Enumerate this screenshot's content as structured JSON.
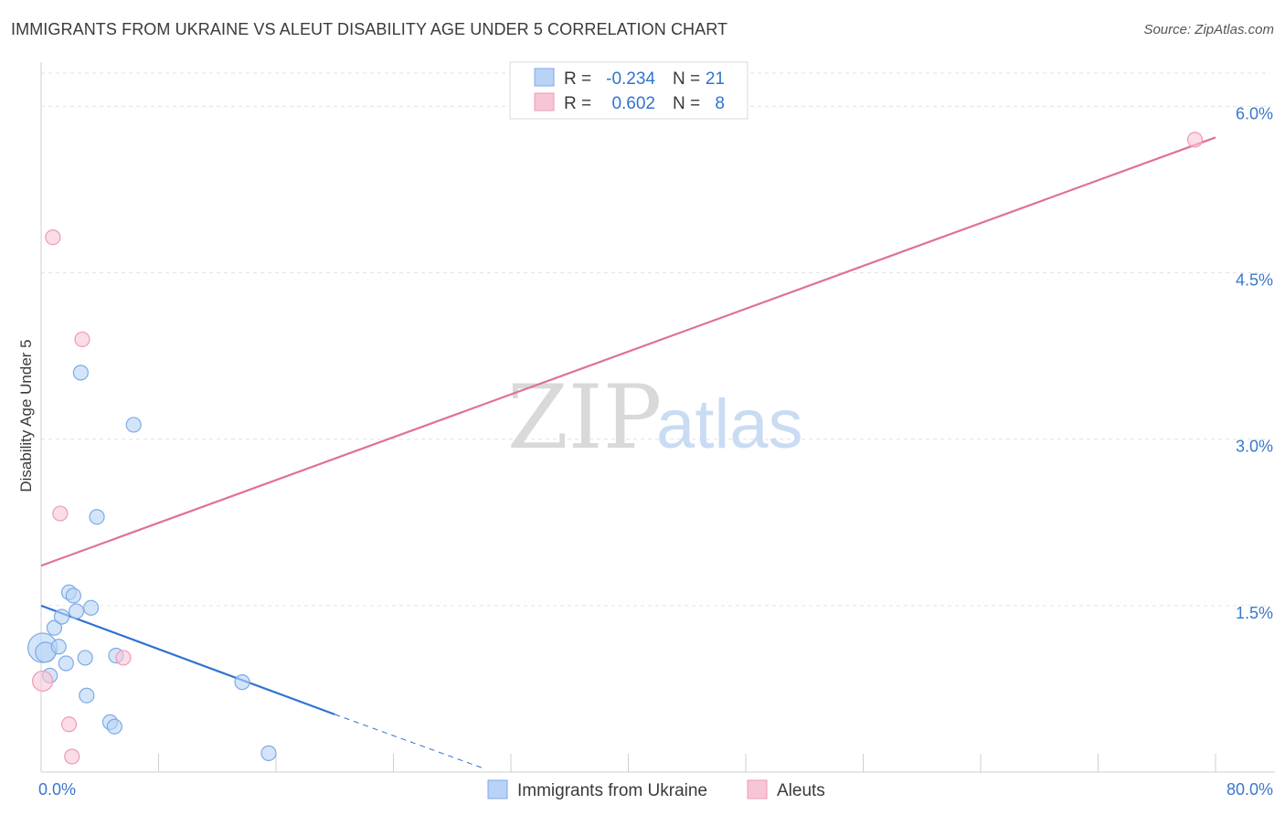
{
  "header": {
    "title": "IMMIGRANTS FROM UKRAINE VS ALEUT DISABILITY AGE UNDER 5 CORRELATION CHART",
    "source": "Source: ZipAtlas.com"
  },
  "watermark": {
    "zip": "ZIP",
    "atlas": "atlas"
  },
  "colors": {
    "blue": "#2f74d0",
    "blue_fill": "#b8d3f5",
    "blue_stroke": "#7eaae6",
    "pink": "#e0709a",
    "pink_fill": "#f7c6d6",
    "pink_stroke": "#ef9ab7",
    "grid": "#e3e3e3",
    "axis_text": "#3a78c9"
  },
  "chart_data": {
    "type": "scatter",
    "title": "IMMIGRANTS FROM UKRAINE VS ALEUT DISABILITY AGE UNDER 5 CORRELATION CHART",
    "xlabel": "",
    "ylabel": "Disability Age Under 5",
    "xlim": [
      0,
      80
    ],
    "ylim": [
      0,
      6.3
    ],
    "x_tick_labels": [
      {
        "value": 0,
        "label": "0.0%"
      },
      {
        "value": 80,
        "label": "80.0%"
      }
    ],
    "y_ticks": [
      {
        "value": 1.5,
        "label": "1.5%"
      },
      {
        "value": 3.0,
        "label": "3.0%"
      },
      {
        "value": 4.5,
        "label": "4.5%"
      },
      {
        "value": 6.0,
        "label": "6.0%"
      }
    ],
    "grid": true,
    "legend_position": "top-center",
    "legend": [
      {
        "series": "Immigrants from Ukraine",
        "r_label": "R = ",
        "r_value": "-0.234",
        "n_label": "N = ",
        "n_value": "21"
      },
      {
        "series": "Aleuts",
        "r_label": "R = ",
        "r_value": "0.602",
        "n_label": "N = ",
        "n_value": "8"
      }
    ],
    "series": [
      {
        "name": "Immigrants from Ukraine",
        "color": "blue",
        "points": [
          {
            "x": 0.1,
            "y": 1.12,
            "size": "large"
          },
          {
            "x": 0.3,
            "y": 1.08,
            "size": "medium"
          },
          {
            "x": 0.6,
            "y": 0.87,
            "size": "small"
          },
          {
            "x": 0.9,
            "y": 1.3,
            "size": "small"
          },
          {
            "x": 1.2,
            "y": 1.13,
            "size": "small"
          },
          {
            "x": 1.4,
            "y": 1.4,
            "size": "small"
          },
          {
            "x": 1.7,
            "y": 0.98,
            "size": "small"
          },
          {
            "x": 1.9,
            "y": 1.62,
            "size": "small"
          },
          {
            "x": 2.2,
            "y": 1.59,
            "size": "small"
          },
          {
            "x": 2.4,
            "y": 1.45,
            "size": "small"
          },
          {
            "x": 2.7,
            "y": 3.6,
            "size": "small"
          },
          {
            "x": 3.0,
            "y": 1.03,
            "size": "small"
          },
          {
            "x": 3.1,
            "y": 0.69,
            "size": "small"
          },
          {
            "x": 3.4,
            "y": 1.48,
            "size": "small"
          },
          {
            "x": 3.8,
            "y": 2.3,
            "size": "small"
          },
          {
            "x": 4.7,
            "y": 0.45,
            "size": "small"
          },
          {
            "x": 5.0,
            "y": 0.41,
            "size": "small"
          },
          {
            "x": 5.1,
            "y": 1.05,
            "size": "small"
          },
          {
            "x": 6.3,
            "y": 3.13,
            "size": "small"
          },
          {
            "x": 13.7,
            "y": 0.81,
            "size": "small"
          },
          {
            "x": 15.5,
            "y": 0.17,
            "size": "small"
          }
        ],
        "trendline": {
          "x0": 0,
          "y0": 1.5,
          "x1": 20.0,
          "y1": 0.52,
          "dashed_to_x": 30.0,
          "dashed_to_y": 0.04
        }
      },
      {
        "name": "Aleuts",
        "color": "pink",
        "points": [
          {
            "x": 0.1,
            "y": 0.82,
            "size": "medium"
          },
          {
            "x": 0.8,
            "y": 4.82,
            "size": "small"
          },
          {
            "x": 1.3,
            "y": 2.33,
            "size": "small"
          },
          {
            "x": 1.9,
            "y": 0.43,
            "size": "small"
          },
          {
            "x": 2.1,
            "y": 0.14,
            "size": "small"
          },
          {
            "x": 2.8,
            "y": 3.9,
            "size": "small"
          },
          {
            "x": 5.6,
            "y": 1.03,
            "size": "small"
          },
          {
            "x": 78.6,
            "y": 5.7,
            "size": "small"
          }
        ],
        "trendline": {
          "x0": 0,
          "y0": 1.86,
          "x1": 80,
          "y1": 5.72
        }
      }
    ]
  }
}
